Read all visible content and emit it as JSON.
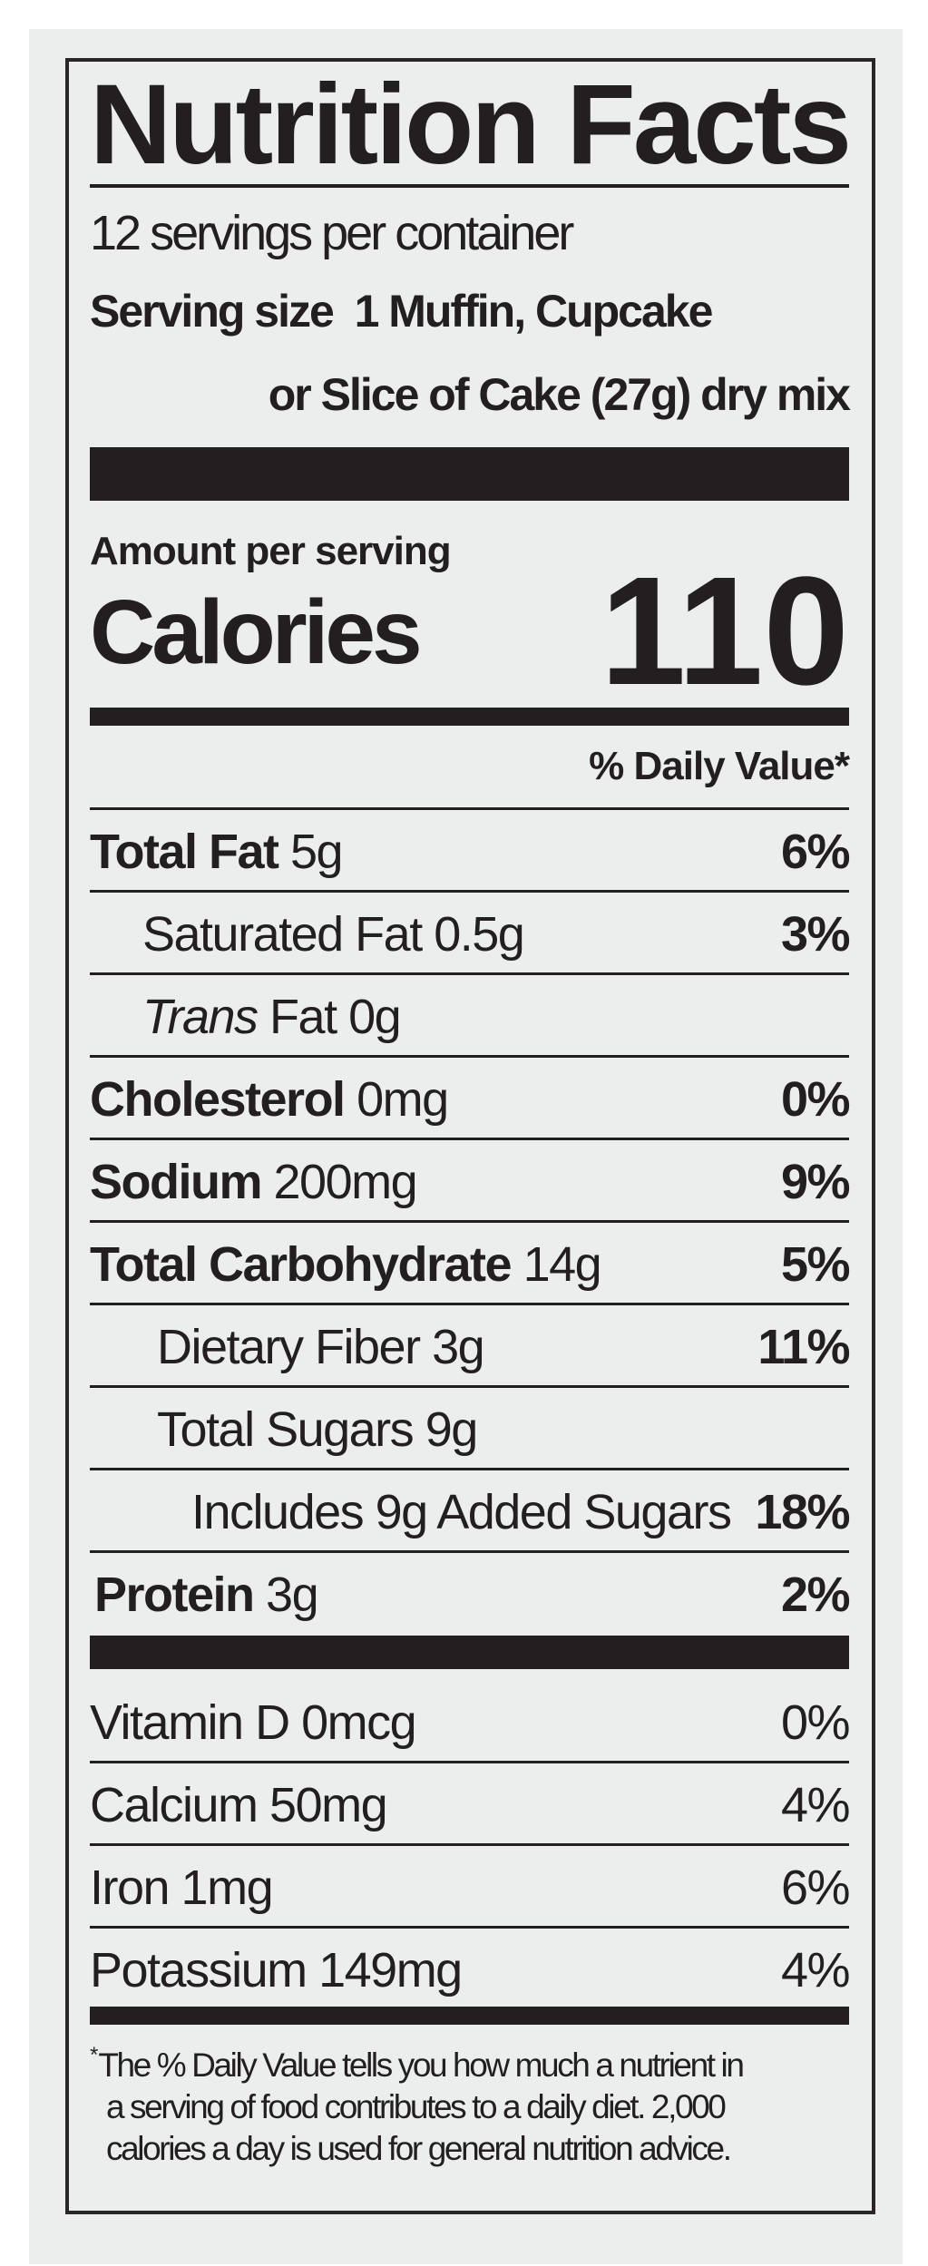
{
  "label": {
    "title": "Nutrition Facts",
    "servings_per_container": "12 servings per container",
    "serving_size_line1": "Serving size  1 Muffin, Cupcake",
    "serving_size_line2": "or Slice of Cake (27g) dry mix",
    "amount_per_serving": "Amount per serving",
    "calories_label": "Calories",
    "calories_value": "110",
    "daily_value_header": "% Daily Value*",
    "nutrients": [
      {
        "name": "Total Fat",
        "amount": "5g",
        "dv": "6%"
      },
      {
        "name": "Saturated Fat",
        "amount": "0.5g",
        "dv": "3%"
      },
      {
        "name": "Trans",
        "name_suffix": "Fat",
        "amount": "0g",
        "dv": ""
      },
      {
        "name": "Cholesterol",
        "amount": "0mg",
        "dv": "0%"
      },
      {
        "name": "Sodium",
        "amount": "200mg",
        "dv": "9%"
      },
      {
        "name": "Total Carbohydrate",
        "amount": "14g",
        "dv": "5%"
      },
      {
        "name": "Dietary Fiber",
        "amount": "3g",
        "dv": "11%"
      },
      {
        "name": "Total Sugars",
        "amount": "9g",
        "dv": ""
      },
      {
        "name": "Includes 9g Added Sugars",
        "amount": "",
        "dv": "18%"
      },
      {
        "name": "Protein",
        "amount": "3g",
        "dv": "2%"
      }
    ],
    "vitamins": [
      {
        "name": "Vitamin D 0mcg",
        "dv": "0%"
      },
      {
        "name": "Calcium 50mg",
        "dv": "4%"
      },
      {
        "name": "Iron 1mg",
        "dv": "6%"
      },
      {
        "name": "Potassium 149mg",
        "dv": "4%"
      }
    ],
    "footnote_marker": "*",
    "footnote_lines": [
      "The % Daily Value tells you how much a nutrient in",
      "a serving of food contributes to a daily diet. 2,000",
      "calories a day is used for general nutrition advice."
    ]
  },
  "colors": {
    "ink": "#231f20",
    "background": "#eceeed"
  }
}
